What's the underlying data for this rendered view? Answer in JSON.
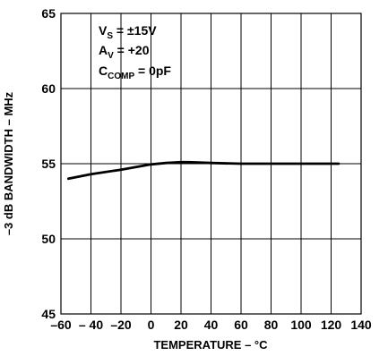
{
  "chart_data": {
    "type": "line",
    "xlabel": "TEMPERATURE – °C",
    "ylabel": "–3 dB BANDWIDTH – MHz",
    "xlim": [
      -60,
      140
    ],
    "ylim": [
      45,
      65
    ],
    "x_ticks": [
      -60,
      -40,
      -20,
      0,
      20,
      40,
      60,
      80,
      100,
      120,
      140
    ],
    "x_tick_labels": [
      "–60",
      "– 40",
      "–20",
      "0",
      "20",
      "40",
      "60",
      "80",
      "100",
      "120",
      "140"
    ],
    "y_ticks": [
      45,
      50,
      55,
      60,
      65
    ],
    "y_tick_labels": [
      "45",
      "50",
      "55",
      "60",
      "65"
    ],
    "grid": true,
    "annotations": [
      {
        "main": "V",
        "sub": "S",
        "rest": " = ±15V"
      },
      {
        "main": "A",
        "sub": "V",
        "rest": " = +20"
      },
      {
        "main": "C",
        "sub": "COMP",
        "rest": " = 0pF"
      }
    ],
    "series": [
      {
        "x": [
          -55,
          -40,
          -20,
          0,
          10,
          20,
          25,
          40,
          60,
          80,
          100,
          125
        ],
        "y": [
          54.0,
          54.3,
          54.6,
          54.95,
          55.05,
          55.1,
          55.1,
          55.05,
          55.0,
          55.0,
          55.0,
          55.0
        ]
      }
    ]
  }
}
